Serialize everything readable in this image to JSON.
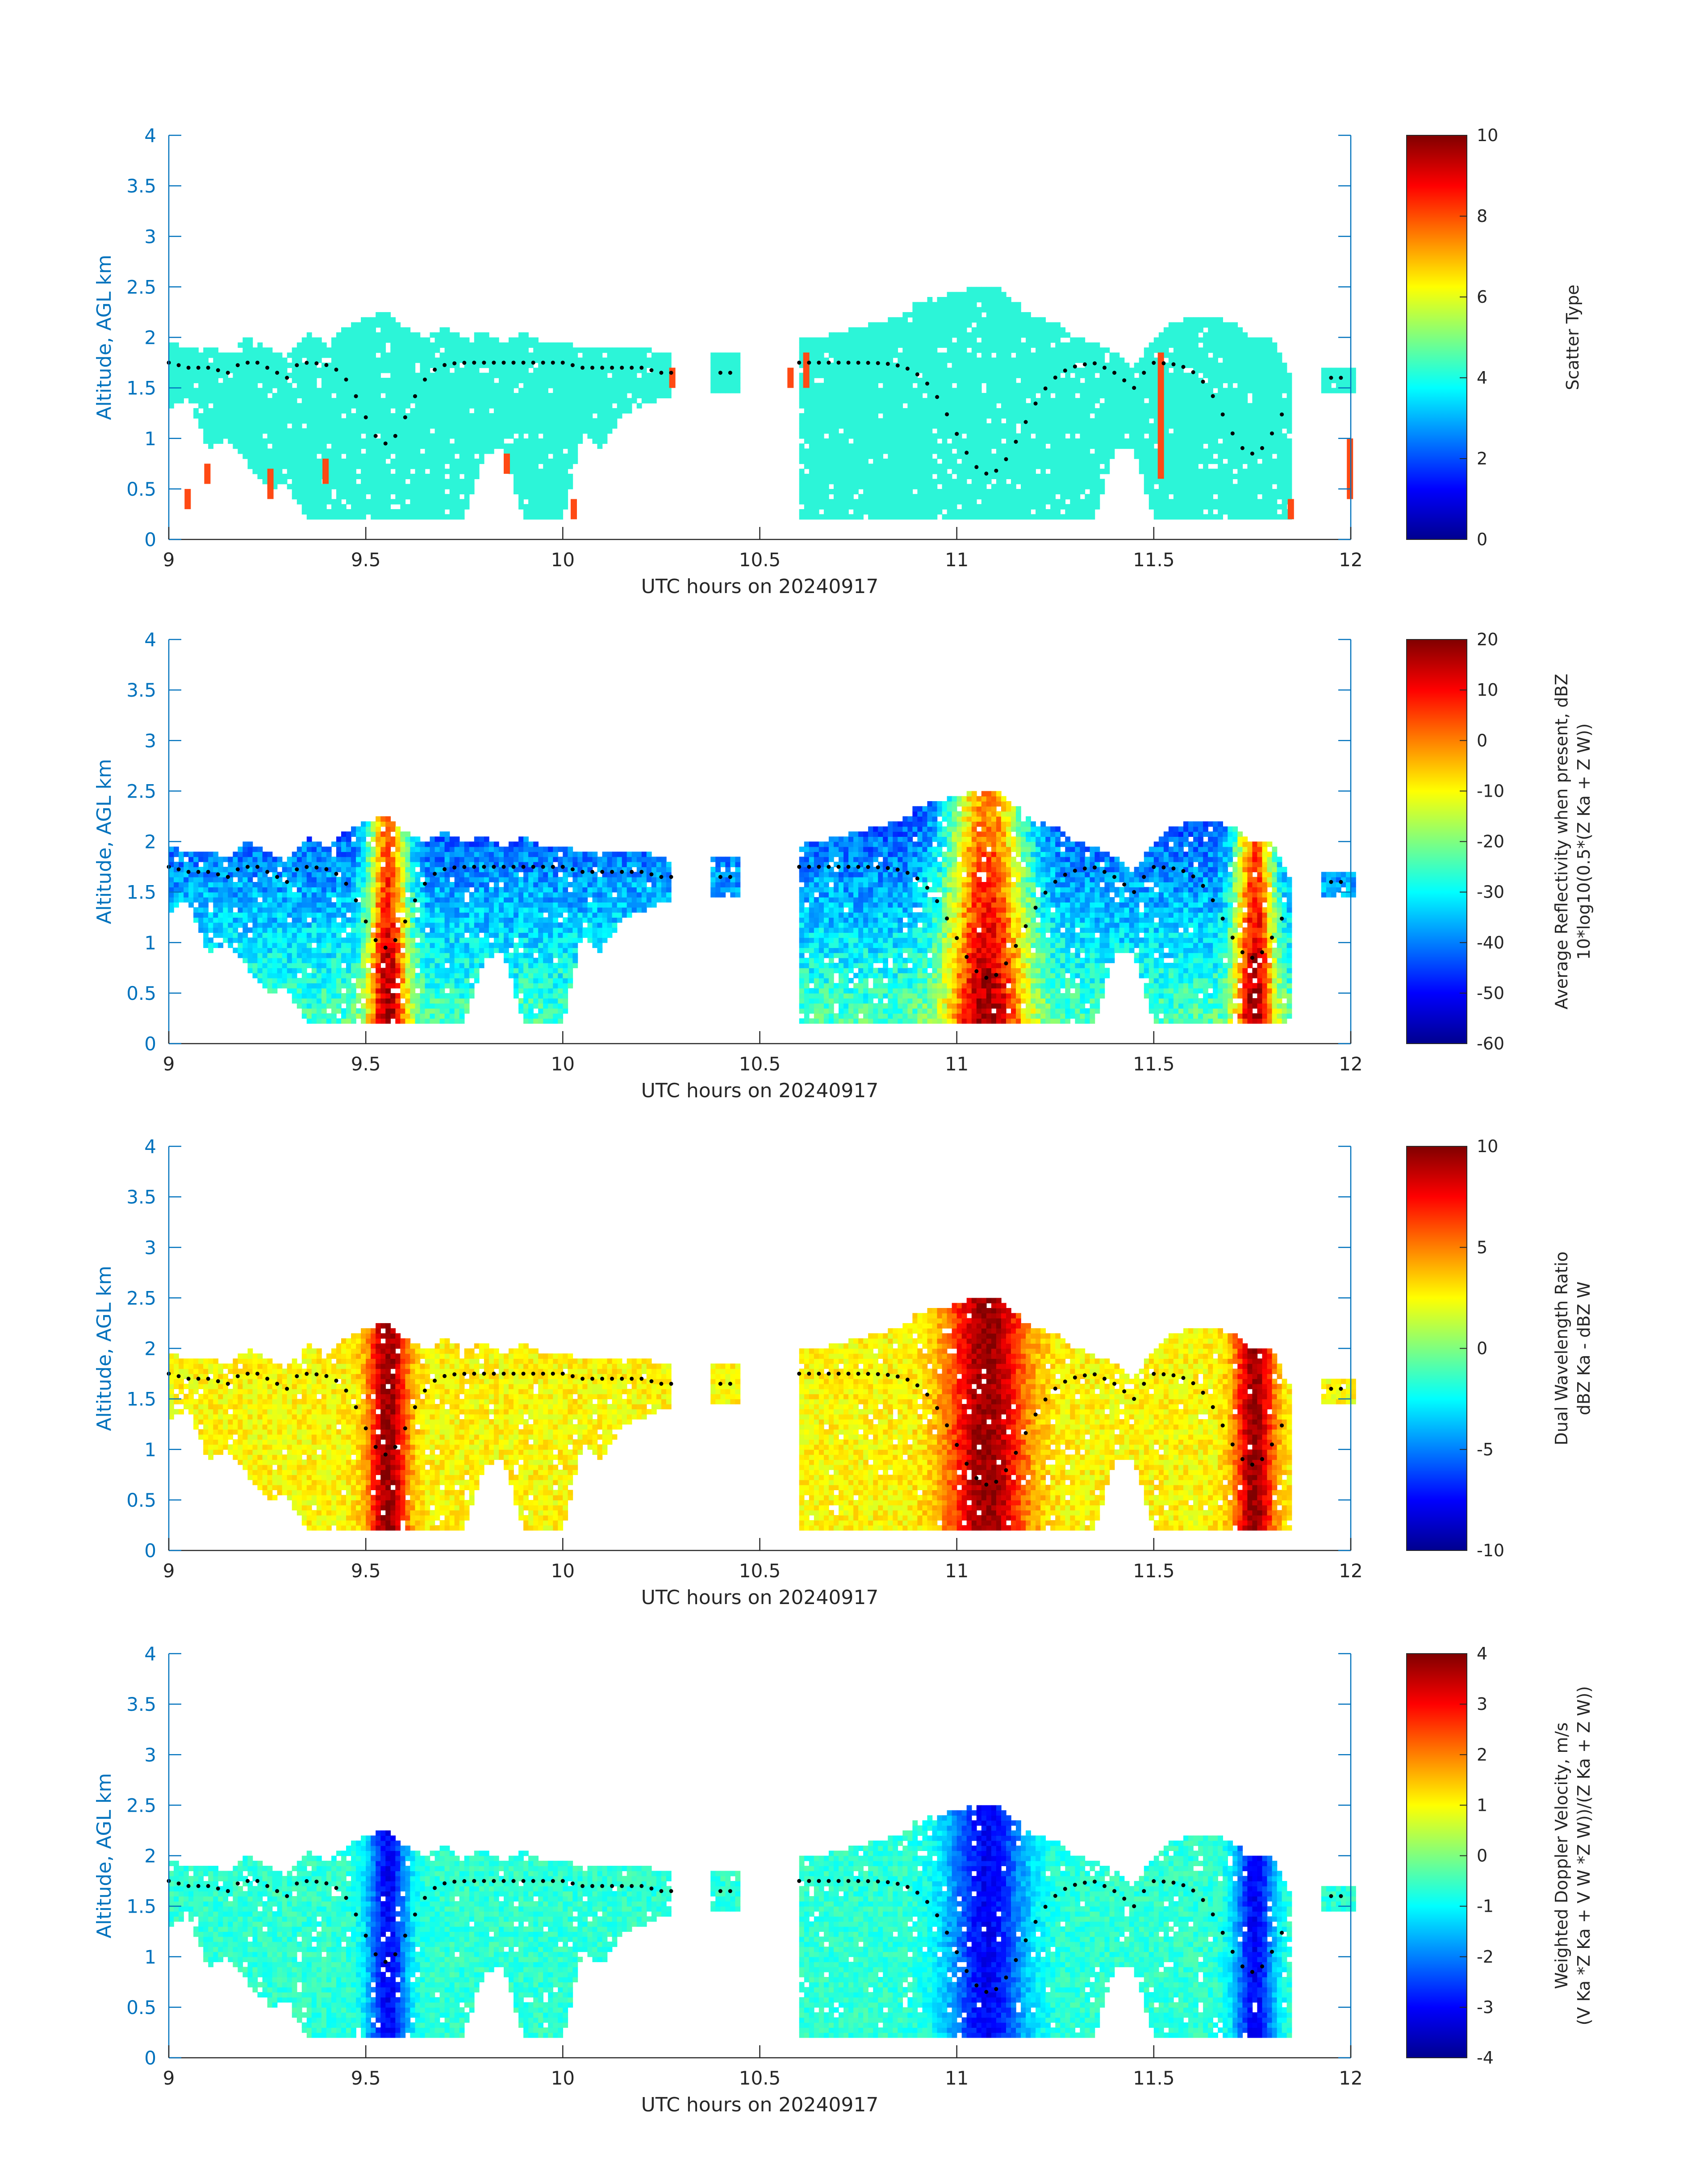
{
  "figure": {
    "colors": {
      "background": "#ffffff",
      "axis_left": "#0072bd",
      "axis_bottom": "#262626",
      "cloud_cyan": "#2cf5d8",
      "marker": "#000000",
      "scatter_orange": "#ff4a14"
    }
  },
  "chart_data": [
    {
      "type": "heatmap",
      "panel": "scatter-type",
      "xlabel": "UTC hours on 20240917",
      "ylabel": "Altitude, AGL km",
      "xlim": [
        9,
        12
      ],
      "ylim": [
        0,
        4
      ],
      "xticks": [
        "9",
        "9.5",
        "10",
        "10.5",
        "11",
        "11.5",
        "12"
      ],
      "yticks": [
        "0",
        "0.5",
        "1",
        "1.5",
        "2",
        "2.5",
        "3",
        "3.5",
        "4"
      ],
      "colorbar": {
        "title": [
          "Scatter Type"
        ],
        "ticks": [
          "0",
          "2",
          "4",
          "6",
          "8",
          "10"
        ],
        "range": [
          0,
          10
        ],
        "colormap": "jet"
      }
    },
    {
      "type": "heatmap",
      "panel": "reflectivity",
      "xlabel": "UTC hours on 20240917",
      "ylabel": "Altitude, AGL km",
      "xlim": [
        9,
        12
      ],
      "ylim": [
        0,
        4
      ],
      "xticks": [
        "9",
        "9.5",
        "10",
        "10.5",
        "11",
        "11.5",
        "12"
      ],
      "yticks": [
        "0",
        "0.5",
        "1",
        "1.5",
        "2",
        "2.5",
        "3",
        "3.5",
        "4"
      ],
      "colorbar": {
        "title": [
          "Average Reflectivity when present, dBZ",
          "10*log10(0.5*(Z Ka + Z W))"
        ],
        "ticks": [
          "-60",
          "-50",
          "-40",
          "-30",
          "-20",
          "-10",
          "0",
          "10",
          "20"
        ],
        "range": [
          -60,
          20
        ],
        "colormap": "jet"
      }
    },
    {
      "type": "heatmap",
      "panel": "dual-wavelength-ratio",
      "xlabel": "UTC hours on 20240917",
      "ylabel": "Altitude, AGL km",
      "xlim": [
        9,
        12
      ],
      "ylim": [
        0,
        4
      ],
      "xticks": [
        "9",
        "9.5",
        "10",
        "10.5",
        "11",
        "11.5",
        "12"
      ],
      "yticks": [
        "0",
        "0.5",
        "1",
        "1.5",
        "2",
        "2.5",
        "3",
        "3.5",
        "4"
      ],
      "colorbar": {
        "title": [
          "Dual Wavelength Ratio",
          "dBZ Ka - dBZ W"
        ],
        "ticks": [
          "-10",
          "-5",
          "0",
          "5",
          "10"
        ],
        "range": [
          -10,
          10
        ],
        "colormap": "jet"
      }
    },
    {
      "type": "heatmap",
      "panel": "doppler-velocity",
      "xlabel": "UTC hours on 20240917",
      "ylabel": "Altitude, AGL km",
      "xlim": [
        9,
        12
      ],
      "ylim": [
        0,
        4
      ],
      "xticks": [
        "9",
        "9.5",
        "10",
        "10.5",
        "11",
        "11.5",
        "12"
      ],
      "yticks": [
        "0",
        "0.5",
        "1",
        "1.5",
        "2",
        "2.5",
        "3",
        "3.5",
        "4"
      ],
      "colorbar": {
        "title": [
          "Weighted Doppler Velocity, m/s",
          "(V Ka *Z Ka + V W *Z W))/(Z Ka + Z W))"
        ],
        "ticks": [
          "-4",
          "-3",
          "-2",
          "-1",
          "0",
          "1",
          "2",
          "3",
          "4"
        ],
        "range": [
          -4,
          4
        ],
        "colormap": "jet"
      }
    }
  ],
  "cloud_profile": {
    "note_time_hours": [
      9.0,
      9.05,
      9.1,
      9.15,
      9.2,
      9.25,
      9.3,
      9.35,
      9.4,
      9.45,
      9.5,
      9.55,
      9.6,
      9.65,
      9.7,
      9.75,
      9.8,
      9.85,
      9.9,
      9.95,
      10.0,
      10.05,
      10.1,
      10.15,
      10.2,
      10.25
    ],
    "top_km": [
      1.95,
      1.9,
      1.9,
      1.85,
      2.0,
      1.9,
      1.8,
      2.05,
      1.95,
      2.1,
      2.2,
      2.25,
      2.1,
      2.0,
      2.1,
      2.0,
      2.05,
      1.95,
      2.05,
      1.95,
      1.95,
      1.9,
      1.9,
      1.9,
      1.9,
      1.85
    ],
    "base_km": [
      1.3,
      1.4,
      0.9,
      1.0,
      0.75,
      0.5,
      0.55,
      0.2,
      0.2,
      0.2,
      0.2,
      0.2,
      0.2,
      0.2,
      0.2,
      0.2,
      0.85,
      0.9,
      0.2,
      0.2,
      0.2,
      1.05,
      0.9,
      1.25,
      1.3,
      1.4
    ],
    "late_time_hours": [
      10.6,
      10.65,
      10.7,
      10.75,
      10.8,
      10.85,
      10.9,
      10.95,
      11.0,
      11.05,
      11.1,
      11.15,
      11.2,
      11.25,
      11.3,
      11.35,
      11.4,
      11.45,
      11.5,
      11.55,
      11.6,
      11.65,
      11.7,
      11.75,
      11.8,
      11.85
    ],
    "late_top_km": [
      2.0,
      2.0,
      2.05,
      2.1,
      2.15,
      2.2,
      2.3,
      2.35,
      2.4,
      2.45,
      2.45,
      2.3,
      2.2,
      2.15,
      2.0,
      1.95,
      1.85,
      1.7,
      2.0,
      2.15,
      2.2,
      2.2,
      2.15,
      2.0,
      2.0,
      1.6
    ],
    "late_base_km": [
      0.2,
      0.2,
      0.2,
      0.2,
      0.2,
      0.2,
      0.2,
      0.2,
      0.2,
      0.2,
      0.2,
      0.2,
      0.2,
      0.2,
      0.2,
      0.2,
      0.9,
      0.9,
      0.2,
      0.2,
      0.2,
      0.2,
      0.2,
      0.2,
      0.2,
      0.2
    ]
  }
}
